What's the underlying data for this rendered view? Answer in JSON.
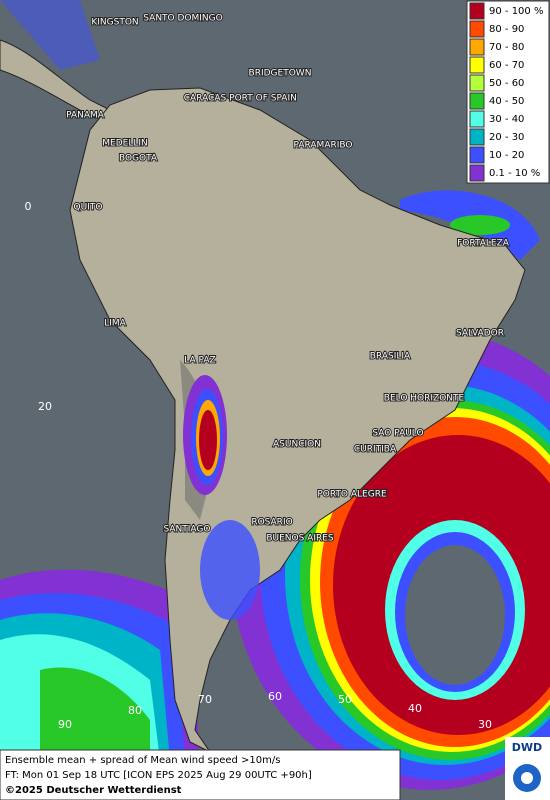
{
  "header": {
    "legend": [
      {
        "label": "90 - 100 %",
        "color": "#b4001e"
      },
      {
        "label": "80 - 90",
        "color": "#ff4a00"
      },
      {
        "label": "70 - 80",
        "color": "#ffa800"
      },
      {
        "label": "60 - 70",
        "color": "#ffff00"
      },
      {
        "label": "50 - 60",
        "color": "#b4ff3c"
      },
      {
        "label": "40 - 50",
        "color": "#28c828"
      },
      {
        "label": "30 - 40",
        "color": "#50ffe6"
      },
      {
        "label": "20 - 30",
        "color": "#00b4c8"
      },
      {
        "label": "10 - 20",
        "color": "#3c50ff"
      },
      {
        "label": "0.1 - 10 %",
        "color": "#8232d2"
      }
    ]
  },
  "map": {
    "cities": [
      "KINGSTON",
      "SANTO DOMINGO",
      "BRIDGETOWN",
      "CARACAS",
      "PORT OF SPAIN",
      "PANAMA",
      "PARAMARIBO",
      "MEDELLIN",
      "BOGOTA",
      "QUITO",
      "FORTALEZA",
      "LIMA",
      "SALVADOR",
      "BRASILIA",
      "LA PAZ",
      "BELO HORIZONTE",
      "SAO PAULO",
      "ASUNCION",
      "CURITIBA",
      "PORTO ALEGRE",
      "ROSARIO",
      "BUENOS AIRES",
      "SANTIAGO"
    ],
    "lat_labels": [
      "0",
      "20"
    ],
    "lon_labels": [
      "90",
      "80",
      "70",
      "60",
      "50",
      "40",
      "30"
    ]
  },
  "footer": {
    "lines": [
      "Ensemble mean + spread of Mean wind speed >10m/s",
      "FT: Mon 01 Sep 18 UTC [ICON EPS 2025 Aug 29 00UTC +90h]",
      "©2025 Deutscher Wetterdienst"
    ],
    "logo": "DWD"
  }
}
